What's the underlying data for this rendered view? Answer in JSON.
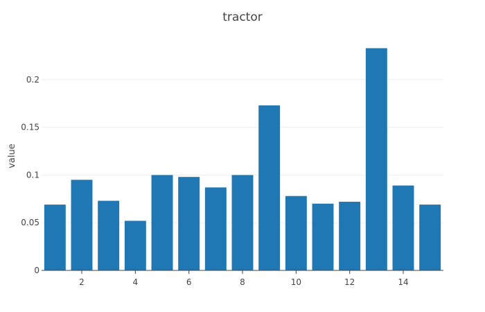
{
  "chart_data": {
    "type": "bar",
    "title": "tractor",
    "xlabel": "",
    "ylabel": "value",
    "x": [
      1,
      2,
      3,
      4,
      5,
      6,
      7,
      8,
      9,
      10,
      11,
      12,
      13,
      14,
      15
    ],
    "values": [
      0.069,
      0.095,
      0.073,
      0.052,
      0.1,
      0.098,
      0.087,
      0.1,
      0.173,
      0.078,
      0.07,
      0.072,
      0.233,
      0.089,
      0.069
    ],
    "xlim": [
      0.5,
      15.5
    ],
    "ylim": [
      0,
      0.245
    ],
    "x_ticks": [
      2,
      4,
      6,
      8,
      10,
      12,
      14
    ],
    "x_tick_labels": [
      "2",
      "4",
      "6",
      "8",
      "10",
      "12",
      "14"
    ],
    "y_ticks": [
      0,
      0.05,
      0.1,
      0.15,
      0.2
    ],
    "y_tick_labels": [
      "0",
      "0.05",
      "0.1",
      "0.15",
      "0.2"
    ],
    "grid": true,
    "legend": "none",
    "colors": {
      "bar": "#1f77b4",
      "grid": "#eeeeee",
      "axis": "#444444",
      "text": "#444444"
    }
  }
}
